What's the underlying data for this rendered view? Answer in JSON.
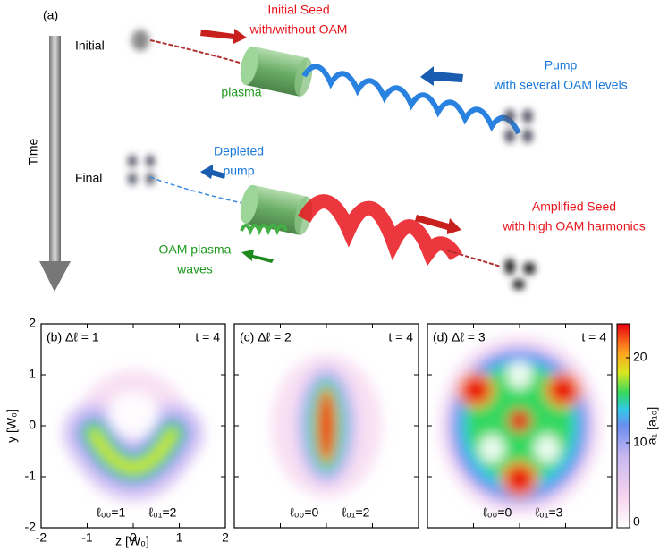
{
  "panel_a": {
    "label": "(a)",
    "time_label": "Time",
    "initial": "Initial",
    "final": "Final",
    "seed": [
      "Initial Seed",
      "with/without OAM"
    ],
    "plasma": "plasma",
    "pump": [
      "Pump",
      "with several OAM levels"
    ],
    "depleted_pump": [
      "Depleted",
      "pump"
    ],
    "amplified_seed": [
      "Amplified Seed",
      "with high OAM harmonics"
    ],
    "plasma_waves": [
      "OAM plasma",
      "waves"
    ]
  },
  "maps": {
    "xlim": [
      -2,
      2
    ],
    "ylim": [
      -2,
      2
    ],
    "xticks": [
      -2,
      -1,
      0,
      1,
      2
    ],
    "yticks": [
      -2,
      -1,
      0,
      1,
      2
    ],
    "x_label": "z [W₀]",
    "y_label": "y [W₀]",
    "panels": [
      {
        "label": "(b) Δℓ = 1",
        "time": "t = 4",
        "modes": [
          "ℓ₀₀=1",
          "ℓ₀₁=2"
        ]
      },
      {
        "label": "(c) Δℓ = 2",
        "time": "t = 4",
        "modes": [
          "ℓ₀₀=0",
          "ℓ₀₁=2"
        ]
      },
      {
        "label": "(d) Δℓ = 3",
        "time": "t = 4",
        "modes": [
          "ℓ₀₀=0",
          "ℓ₀₁=3"
        ]
      }
    ],
    "colorbar": {
      "label": "a₁ [a₁₀]",
      "lim": [
        0,
        24
      ],
      "ticks": [
        0,
        10,
        20
      ]
    }
  }
}
